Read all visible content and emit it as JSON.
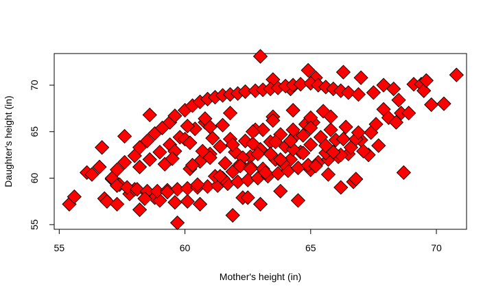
{
  "chart_data": {
    "type": "scatter",
    "title": "",
    "xlabel": "Mother's height (in)",
    "ylabel": "Daughter's height (in)",
    "xlim": [
      54.8,
      71.2
    ],
    "ylim": [
      54.5,
      73.4
    ],
    "xticks": [
      55,
      60,
      65,
      70
    ],
    "yticks": [
      55,
      60,
      65,
      70
    ],
    "xtick_labels": [
      "55",
      "60",
      "65",
      "70"
    ],
    "ytick_labels": [
      "55",
      "60",
      "65",
      "70"
    ],
    "grid": false,
    "legend": "none",
    "marker": "diamond",
    "marker_fill": "#ff0000",
    "marker_stroke": "#000000",
    "series": [
      {
        "x": [
          55.4,
          55.6,
          56.1,
          56.3,
          56.6,
          56.7,
          56.8,
          56.9,
          57.1,
          57.3,
          57.4,
          57.6,
          57.8,
          58.0,
          58.2,
          58.5,
          58.6,
          58.8,
          59.0,
          59.6,
          59.7,
          60.1,
          60.6,
          61.9,
          62.3,
          62.5,
          63.0,
          63.0,
          63.1,
          63.5,
          63.8,
          64.2,
          64.5,
          64.9,
          65.0,
          65.2,
          66.2,
          66.3,
          66.7,
          67.0,
          67.3,
          67.5,
          67.7,
          67.9,
          68.3,
          68.5,
          68.6,
          68.7,
          68.9,
          69.1,
          69.4,
          69.5,
          69.6,
          69.8,
          70.3,
          70.8,
          57.1,
          57.3,
          57.6,
          58.0,
          58.2,
          58.5,
          58.8,
          59.1,
          59.4,
          59.6,
          60.0,
          60.3,
          60.6,
          60.9,
          61.2,
          61.5,
          61.8,
          62.1,
          62.4,
          62.8,
          63.1,
          63.4,
          63.7,
          64.0,
          64.3,
          64.6,
          65.0,
          65.3,
          65.6,
          65.9,
          66.2,
          66.5,
          66.9,
          57.3,
          57.7,
          58.1,
          58.5,
          58.9,
          59.3,
          59.7,
          60.1,
          60.5,
          60.9,
          61.3,
          61.7,
          62.1,
          62.5,
          62.9,
          63.3,
          63.7,
          64.1,
          64.5,
          64.9,
          65.3,
          65.7,
          66.1,
          66.5,
          67.1,
          58.2,
          58.6,
          59.0,
          59.4,
          59.8,
          60.2,
          60.6,
          61.0,
          61.4,
          61.8,
          62.2,
          62.6,
          63.0,
          63.4,
          63.8,
          64.2,
          64.6,
          65.0,
          65.4,
          65.8,
          66.2,
          66.6,
          67.0,
          59.2,
          59.6,
          60.0,
          60.4,
          60.8,
          61.2,
          61.6,
          62.0,
          62.4,
          62.8,
          63.2,
          63.6,
          64.0,
          64.4,
          64.8,
          65.2,
          65.6,
          66.0,
          66.4,
          66.8,
          60.3,
          60.7,
          61.1,
          61.5,
          61.9,
          62.3,
          62.7,
          63.1,
          63.5,
          63.9,
          64.3,
          64.7,
          65.1,
          65.5,
          65.9,
          66.3,
          60.1,
          60.8,
          61.5,
          62.2,
          62.9,
          63.6,
          64.3,
          65.0,
          65.7,
          59.5,
          60.2,
          61.0,
          61.8,
          62.6,
          63.4,
          64.2,
          65.0,
          65.8,
          61.0,
          61.9,
          62.7,
          63.5,
          64.3,
          58.4,
          59.3,
          60.5,
          61.4,
          62.6,
          63.8,
          64.7,
          65.6,
          66.8,
          67.4,
          67.9,
          68.1,
          68.4,
          66.9,
          67.6
        ],
        "y": [
          57.2,
          58.0,
          60.6,
          60.4,
          61.2,
          63.3,
          57.8,
          57.5,
          59.9,
          57.2,
          59.3,
          64.5,
          58.3,
          58.8,
          56.6,
          58.4,
          66.8,
          57.9,
          57.6,
          57.4,
          55.2,
          57.5,
          57.2,
          56.0,
          57.9,
          57.9,
          57.2,
          73.1,
          61.0,
          70.6,
          58.6,
          69.6,
          57.6,
          71.6,
          60.9,
          70.8,
          59.0,
          71.4,
          59.6,
          70.8,
          62.5,
          69.2,
          63.5,
          70.0,
          69.6,
          68.4,
          67.0,
          60.6,
          67.0,
          70.1,
          70.1,
          69.4,
          70.5,
          67.9,
          68.0,
          71.1,
          60.0,
          60.9,
          61.7,
          62.4,
          63.3,
          64.0,
          64.8,
          65.4,
          66.0,
          66.7,
          67.3,
          67.8,
          68.2,
          68.5,
          68.7,
          68.9,
          69.0,
          69.1,
          69.3,
          69.4,
          69.5,
          69.6,
          69.7,
          69.9,
          70.0,
          70.1,
          70.2,
          70.0,
          69.8,
          69.6,
          69.4,
          69.2,
          69.0,
          59.2,
          59.0,
          58.8,
          58.6,
          58.6,
          58.7,
          58.8,
          58.9,
          59.0,
          59.1,
          59.2,
          59.4,
          59.6,
          59.8,
          60.0,
          60.2,
          60.5,
          60.8,
          61.1,
          61.4,
          61.7,
          62.0,
          62.3,
          62.6,
          62.9,
          61.2,
          62.0,
          62.8,
          63.6,
          64.4,
          61.0,
          61.8,
          62.6,
          63.4,
          64.2,
          61.5,
          62.3,
          63.1,
          63.9,
          64.7,
          62.0,
          62.8,
          63.6,
          64.4,
          65.2,
          62.5,
          63.3,
          64.1,
          61.5,
          62.9,
          64.2,
          65.3,
          66.0,
          60.2,
          61.6,
          62.8,
          64.0,
          65.2,
          60.6,
          62.0,
          63.4,
          64.6,
          65.8,
          61.3,
          62.7,
          64.1,
          65.5,
          59.9,
          61.4,
          62.9,
          64.3,
          65.7,
          60.7,
          62.2,
          63.7,
          65.2,
          66.6,
          61.6,
          63.1,
          64.6,
          66.0,
          67.2,
          62.8,
          64.2,
          65.6,
          66.4,
          60.0,
          61.3,
          62.6,
          63.9,
          65.2,
          66.5,
          60.4,
          62.1,
          63.8,
          65.5,
          67.0,
          61.2,
          62.6,
          64.0,
          65.4,
          66.6,
          62.2,
          63.6,
          65.0,
          66.2,
          67.3,
          57.8,
          58.5,
          59.3,
          60.2,
          61.0,
          62.0,
          62.7,
          63.5,
          64.2,
          64.9,
          67.4,
          66.5,
          66.0,
          64.9,
          65.8
        ]
      }
    ]
  }
}
